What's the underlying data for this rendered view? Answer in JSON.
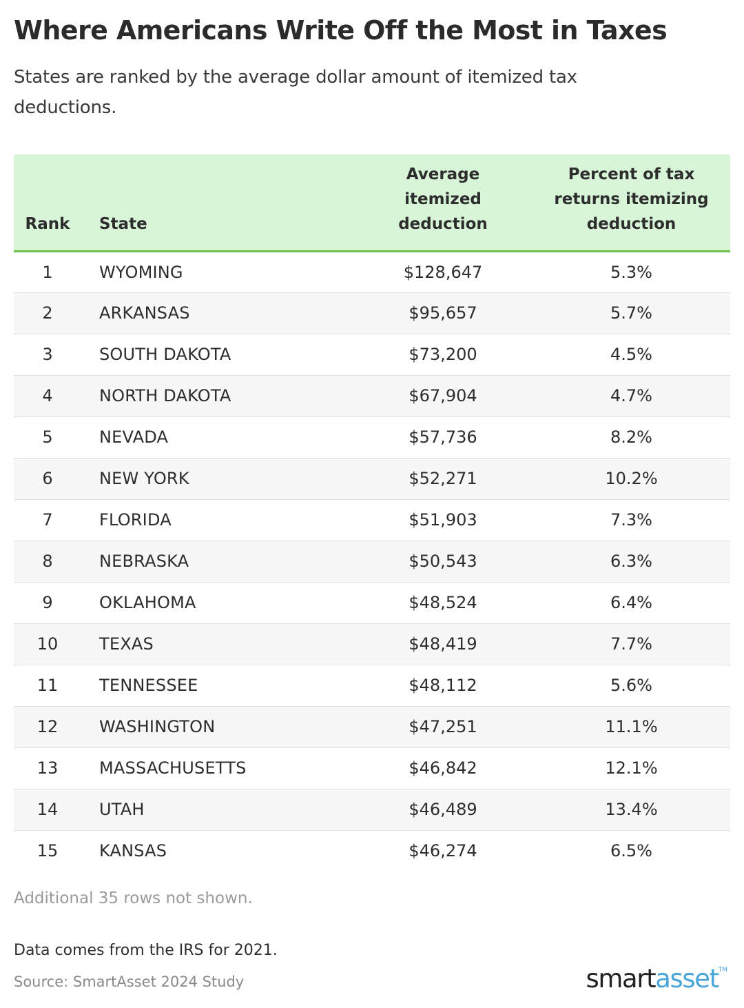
{
  "title": "Where Americans Write Off the Most in Taxes",
  "subtitle": "States are ranked by the average dollar amount of itemized tax deductions.",
  "chart_data": {
    "type": "table",
    "columns": [
      "Rank",
      "State",
      "Average itemized deduction",
      "Percent of tax returns itemizing deduction"
    ],
    "rows": [
      {
        "rank": "1",
        "state": "WYOMING",
        "avg": "$128,647",
        "pct": "5.3%"
      },
      {
        "rank": "2",
        "state": "ARKANSAS",
        "avg": "$95,657",
        "pct": "5.7%"
      },
      {
        "rank": "3",
        "state": "SOUTH DAKOTA",
        "avg": "$73,200",
        "pct": "4.5%"
      },
      {
        "rank": "4",
        "state": "NORTH DAKOTA",
        "avg": "$67,904",
        "pct": "4.7%"
      },
      {
        "rank": "5",
        "state": "NEVADA",
        "avg": "$57,736",
        "pct": "8.2%"
      },
      {
        "rank": "6",
        "state": "NEW YORK",
        "avg": "$52,271",
        "pct": "10.2%"
      },
      {
        "rank": "7",
        "state": "FLORIDA",
        "avg": "$51,903",
        "pct": "7.3%"
      },
      {
        "rank": "8",
        "state": "NEBRASKA",
        "avg": "$50,543",
        "pct": "6.3%"
      },
      {
        "rank": "9",
        "state": "OKLAHOMA",
        "avg": "$48,524",
        "pct": "6.4%"
      },
      {
        "rank": "10",
        "state": "TEXAS",
        "avg": "$48,419",
        "pct": "7.7%"
      },
      {
        "rank": "11",
        "state": "TENNESSEE",
        "avg": "$48,112",
        "pct": "5.6%"
      },
      {
        "rank": "12",
        "state": "WASHINGTON",
        "avg": "$47,251",
        "pct": "11.1%"
      },
      {
        "rank": "13",
        "state": "MASSACHUSETTS",
        "avg": "$46,842",
        "pct": "12.1%"
      },
      {
        "rank": "14",
        "state": "UTAH",
        "avg": "$46,489",
        "pct": "13.4%"
      },
      {
        "rank": "15",
        "state": "KANSAS",
        "avg": "$46,274",
        "pct": "6.5%"
      }
    ],
    "header_color": "#d8f5d8",
    "header_rule_color": "#6cc24a"
  },
  "more_rows_text": "Additional 35 rows not shown.",
  "note": "Data comes from the IRS for 2021.",
  "source": "Source: SmartAsset 2024 Study",
  "logo": {
    "smart": "smart",
    "asset": "asset",
    "tm": "TM",
    "accent_color": "#47a5d9"
  }
}
